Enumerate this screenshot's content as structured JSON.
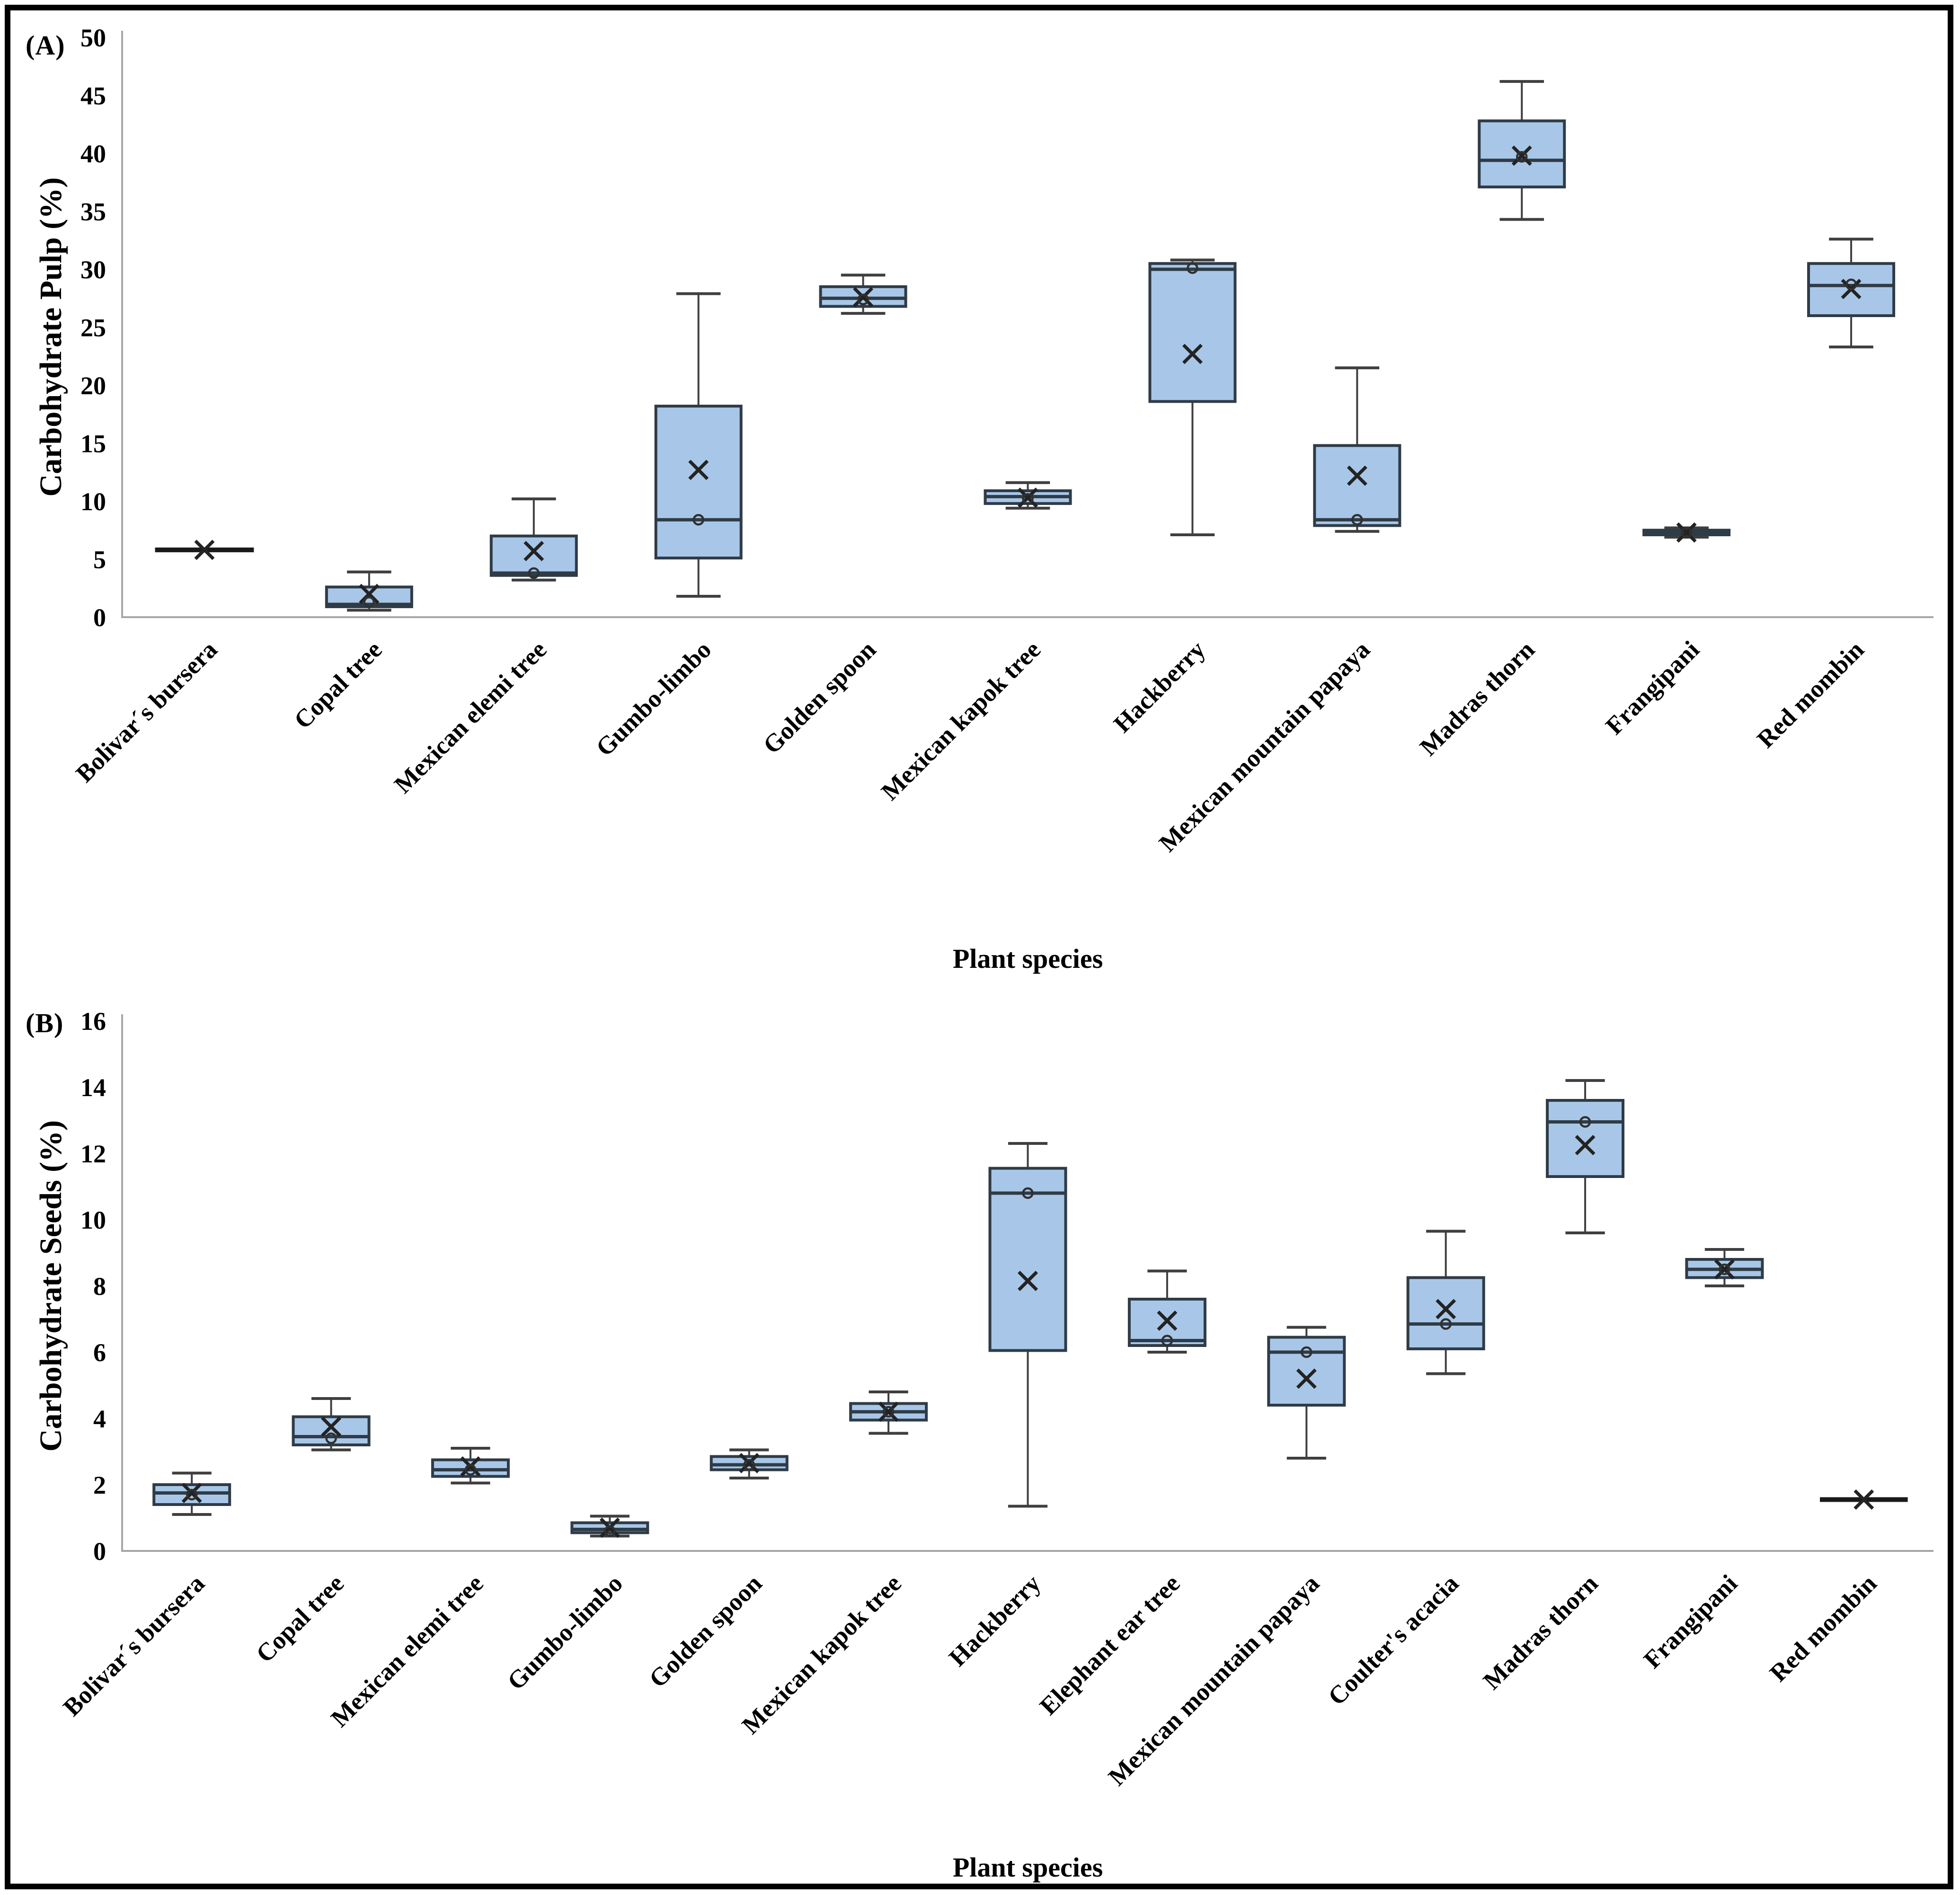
{
  "figure": {
    "background": "#ffffff",
    "frame_color": "#000000",
    "box_fill": "#a8c7e8",
    "box_border": "#2f3b46",
    "median_color": "#2f3b46",
    "whisker_color": "#3f3f3f",
    "marker_color": "#232323",
    "axis_color": "#a6a6a6",
    "text_color": "#000000"
  },
  "chart_data": [
    {
      "type": "box",
      "panel_label": "(A)",
      "title": "",
      "ylabel": "Carbohydrate Pulp (%)",
      "xlabel": "Plant species",
      "ylim": [
        0,
        50
      ],
      "ytick_step": 5,
      "grid": false,
      "legend": "none",
      "categories": [
        "Bolivar´s bursera",
        "Copal tree",
        "Mexican elemi tree",
        "Gumbo-limbo",
        "Golden spoon",
        "Mexican kapok tree",
        "Hackberry",
        "Mexican mountain papaya",
        "Madras thorn",
        "Frangipani",
        "Red mombin"
      ],
      "boxes": [
        {
          "low": 5.8,
          "q1": 5.8,
          "median": 5.8,
          "q3": 5.8,
          "high": 5.8,
          "mean": 5.8,
          "point": null
        },
        {
          "low": 0.6,
          "q1": 0.9,
          "median": 1.1,
          "q3": 2.6,
          "high": 3.9,
          "mean": 2.0,
          "point": 1.3
        },
        {
          "low": 3.2,
          "q1": 3.6,
          "median": 3.8,
          "q3": 7.0,
          "high": 10.2,
          "mean": 5.7,
          "point": 3.8
        },
        {
          "low": 1.8,
          "q1": 5.1,
          "median": 8.4,
          "q3": 18.2,
          "high": 27.9,
          "mean": 12.7,
          "point": 8.4
        },
        {
          "low": 26.2,
          "q1": 26.8,
          "median": 27.5,
          "q3": 28.5,
          "high": 29.5,
          "mean": 27.6,
          "point": 27.4
        },
        {
          "low": 9.4,
          "q1": 9.8,
          "median": 10.4,
          "q3": 10.9,
          "high": 11.6,
          "mean": 10.3,
          "point": 10.2
        },
        {
          "low": 7.1,
          "q1": 18.6,
          "median": 30.0,
          "q3": 30.5,
          "high": 30.8,
          "mean": 22.7,
          "point": 30.1
        },
        {
          "low": 7.4,
          "q1": 7.9,
          "median": 8.4,
          "q3": 14.8,
          "high": 21.5,
          "mean": 12.2,
          "point": 8.4
        },
        {
          "low": 34.3,
          "q1": 37.1,
          "median": 39.4,
          "q3": 42.8,
          "high": 46.2,
          "mean": 39.8,
          "point": 39.7
        },
        {
          "low": 6.9,
          "q1": 7.1,
          "median": 7.3,
          "q3": 7.5,
          "high": 7.7,
          "mean": 7.3,
          "point": 7.3
        },
        {
          "low": 23.3,
          "q1": 26.0,
          "median": 28.6,
          "q3": 30.5,
          "high": 32.6,
          "mean": 28.3,
          "point": 28.7
        }
      ]
    },
    {
      "type": "box",
      "panel_label": "(B)",
      "title": "",
      "ylabel": "Carbohydrate Seeds (%)",
      "xlabel": "Plant species",
      "ylim": [
        0,
        16
      ],
      "ytick_step": 2,
      "grid": false,
      "legend": "none",
      "categories": [
        "Bolivar´s bursera",
        "Copal tree",
        "Mexican elemi tree",
        "Gumbo-limbo",
        "Golden spoon",
        "Mexican kapok tree",
        "Hackberry",
        "Elephant ear tree",
        "Mexican mountain papaya",
        "Coulter's acacia",
        "Madras thorn",
        "Frangipani",
        "Red mombin"
      ],
      "boxes": [
        {
          "low": 1.1,
          "q1": 1.4,
          "median": 1.75,
          "q3": 2.0,
          "high": 2.35,
          "mean": 1.75,
          "point": 1.7
        },
        {
          "low": 3.05,
          "q1": 3.2,
          "median": 3.45,
          "q3": 4.05,
          "high": 4.6,
          "mean": 3.75,
          "point": 3.4
        },
        {
          "low": 2.05,
          "q1": 2.25,
          "median": 2.45,
          "q3": 2.75,
          "high": 3.1,
          "mean": 2.55,
          "point": 2.45
        },
        {
          "low": 0.45,
          "q1": 0.55,
          "median": 0.65,
          "q3": 0.85,
          "high": 1.05,
          "mean": 0.7,
          "point": 0.6
        },
        {
          "low": 2.2,
          "q1": 2.45,
          "median": 2.6,
          "q3": 2.85,
          "high": 3.05,
          "mean": 2.65,
          "point": 2.6
        },
        {
          "low": 3.55,
          "q1": 3.95,
          "median": 4.2,
          "q3": 4.45,
          "high": 4.8,
          "mean": 4.2,
          "point": 4.2
        },
        {
          "low": 1.35,
          "q1": 6.05,
          "median": 10.8,
          "q3": 11.55,
          "high": 12.3,
          "mean": 8.15,
          "point": 10.8
        },
        {
          "low": 6.0,
          "q1": 6.2,
          "median": 6.35,
          "q3": 7.6,
          "high": 8.45,
          "mean": 6.95,
          "point": 6.35
        },
        {
          "low": 2.8,
          "q1": 4.4,
          "median": 6.0,
          "q3": 6.45,
          "high": 6.75,
          "mean": 5.2,
          "point": 6.0
        },
        {
          "low": 5.35,
          "q1": 6.1,
          "median": 6.85,
          "q3": 8.25,
          "high": 9.65,
          "mean": 7.3,
          "point": 6.85
        },
        {
          "low": 9.6,
          "q1": 11.3,
          "median": 12.95,
          "q3": 13.6,
          "high": 14.2,
          "mean": 12.25,
          "point": 12.95
        },
        {
          "low": 8.0,
          "q1": 8.25,
          "median": 8.5,
          "q3": 8.8,
          "high": 9.1,
          "mean": 8.5,
          "point": 8.5
        },
        {
          "low": 1.55,
          "q1": 1.55,
          "median": 1.55,
          "q3": 1.55,
          "high": 1.55,
          "mean": 1.55,
          "point": null
        }
      ]
    }
  ]
}
